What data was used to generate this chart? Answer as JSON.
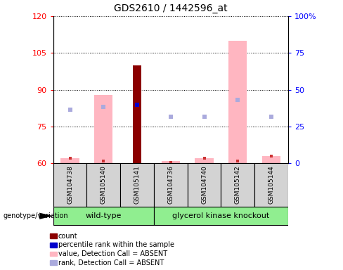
{
  "title": "GDS2610 / 1442596_at",
  "samples": [
    "GSM104738",
    "GSM105140",
    "GSM105141",
    "GSM104736",
    "GSM104740",
    "GSM105142",
    "GSM105144"
  ],
  "ylim_left": [
    60,
    120
  ],
  "ylim_right": [
    0,
    100
  ],
  "yticks_left": [
    60,
    75,
    90,
    105,
    120
  ],
  "yticks_right": [
    0,
    25,
    50,
    75,
    100
  ],
  "ytick_labels_right": [
    "0",
    "25",
    "50",
    "75",
    "100%"
  ],
  "count_bars": {
    "GSM104738": null,
    "GSM105140": null,
    "GSM105141": 100,
    "GSM104736": null,
    "GSM104740": null,
    "GSM105142": null,
    "GSM105144": null
  },
  "value_absent_bars": {
    "GSM104738": 62,
    "GSM105140": 88,
    "GSM105141": null,
    "GSM104736": 61,
    "GSM104740": 62,
    "GSM105142": 110,
    "GSM105144": 63
  },
  "rank_absent_markers": {
    "GSM104738": 82,
    "GSM105140": 83,
    "GSM105141": null,
    "GSM104736": 79,
    "GSM104740": 79,
    "GSM105142": 86,
    "GSM105144": 79
  },
  "percentile_rank_marker": {
    "GSM105141": 84
  },
  "small_red_markers": {
    "GSM104738": 62,
    "GSM105140": 61,
    "GSM105141": null,
    "GSM104736": 60.5,
    "GSM104740": 62,
    "GSM105142": 61,
    "GSM105144": 63
  },
  "wild_type_indices": [
    0,
    1,
    2
  ],
  "gk_indices": [
    3,
    4,
    5,
    6
  ],
  "legend_labels": [
    "count",
    "percentile rank within the sample",
    "value, Detection Call = ABSENT",
    "rank, Detection Call = ABSENT"
  ],
  "legend_colors": [
    "#8B0000",
    "#0000CC",
    "#FFB6C1",
    "#AAAADD"
  ]
}
